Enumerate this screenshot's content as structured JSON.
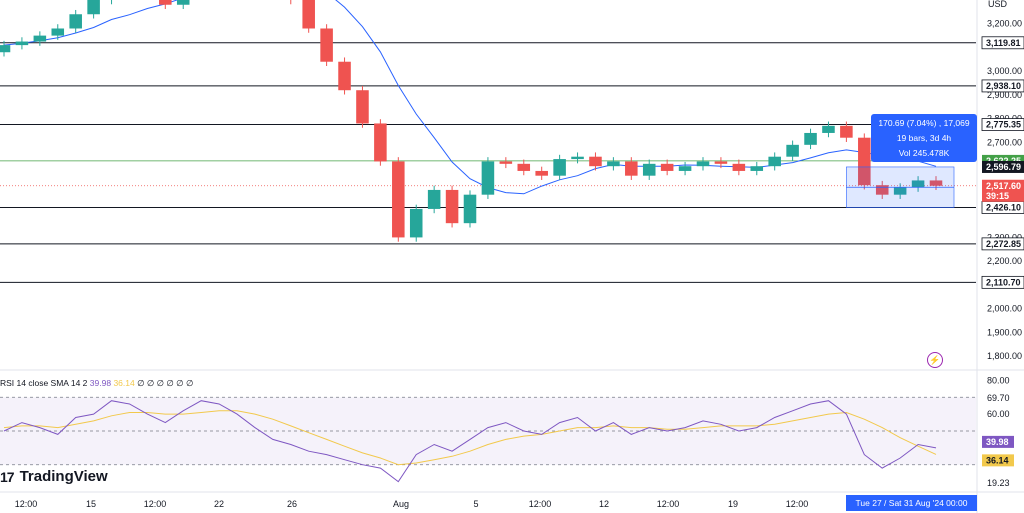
{
  "currency": "USD",
  "price_axis": {
    "ticks": [
      "3,200.00",
      "3,000.00",
      "2,900.00",
      "2,800.00",
      "2,700.00",
      "2,300.00",
      "2,200.00",
      "2,000.00",
      "1,900.00",
      "1,800.00"
    ],
    "tick_values": [
      3200,
      3000,
      2900,
      2800,
      2700,
      2300,
      2200,
      2000,
      1900,
      1800
    ]
  },
  "levels": [
    {
      "label": "3,119.81",
      "value": 3119.81
    },
    {
      "label": "2,938.10",
      "value": 2938.1
    },
    {
      "label": "2,775.35",
      "value": 2775.35
    },
    {
      "label": "2,426.10",
      "value": 2426.1
    },
    {
      "label": "2,272.85",
      "value": 2272.85
    },
    {
      "label": "2,110.70",
      "value": 2110.7
    }
  ],
  "tags": [
    {
      "label": "2,622.25",
      "value": 2622.25,
      "color": "#43a047"
    },
    {
      "label": "2,596.79",
      "value": 2596.79,
      "color": "#131722"
    },
    {
      "label": "2,517.60",
      "value": 2517.6,
      "color": "#ef5350"
    }
  ],
  "countdown": "39:15",
  "measure_tooltip": {
    "line1": "170.69 (7.04%) , 17,069",
    "line2": "19 bars, 3d 4h",
    "line3": "Vol 245.478K"
  },
  "rsi": {
    "legend_label": "RSI 14 close SMA 14 2",
    "rsi_value": "39.98",
    "sma_value": "36.14",
    "legend_tail": "∅ ∅ ∅ ∅ ∅ ∅",
    "axis_ticks": [
      "80.00",
      "69.70",
      "60.00",
      "19.23"
    ],
    "axis_values": [
      80,
      69.7,
      60,
      19.23
    ],
    "upper_band": 70,
    "lower_band": 30
  },
  "time_axis": [
    "12:00",
    "15",
    "12:00",
    "22",
    "26",
    "Aug",
    "5",
    "12:00",
    "12",
    "12:00",
    "19",
    "12:00"
  ],
  "date_range": "Tue 27 / Sat 31 Aug '24   00:00",
  "brand": "TradingView",
  "brand_mark": "17",
  "colors": {
    "up": "#26a69a",
    "down": "#ef5350",
    "ma": "#2962ff",
    "rsi": "#7e57c2",
    "rsi_sma": "#f2c94c",
    "level": "#131722"
  },
  "chart_data": {
    "type": "candlestick",
    "symbol_currency": "USD",
    "series": [
      {
        "name": "price",
        "close": [
          3110,
          3125,
          3150,
          3180,
          3240,
          3300,
          3420,
          3380,
          3320,
          3280,
          3350,
          3420,
          3440,
          3470,
          3430,
          3380,
          3300,
          3180,
          3040,
          2920,
          2780,
          2620,
          2300,
          2420,
          2500,
          2360,
          2480,
          2620,
          2610,
          2580,
          2560,
          2630,
          2640,
          2600,
          2620,
          2560,
          2610,
          2580,
          2600,
          2620,
          2610,
          2580,
          2600,
          2640,
          2690,
          2740,
          2770,
          2720,
          2520,
          2480,
          2510,
          2540,
          2517.6
        ]
      }
    ],
    "levels": [
      3119.81,
      2938.1,
      2775.35,
      2426.1,
      2272.85,
      2110.7
    ],
    "y_range": [
      1750,
      3300
    ],
    "rsi": {
      "values": [
        50,
        55,
        52,
        48,
        58,
        60,
        68,
        66,
        60,
        55,
        62,
        68,
        66,
        60,
        52,
        45,
        42,
        38,
        36,
        33,
        30,
        28,
        20,
        36,
        42,
        38,
        45,
        52,
        55,
        50,
        48,
        55,
        58,
        50,
        55,
        48,
        52,
        50,
        52,
        56,
        54,
        50,
        52,
        58,
        62,
        66,
        68,
        60,
        36,
        28,
        34,
        42,
        39.98
      ],
      "sma": [
        52,
        53,
        53,
        52,
        54,
        56,
        59,
        61,
        61,
        60,
        60,
        61,
        62,
        62,
        60,
        57,
        53,
        49,
        45,
        41,
        37,
        34,
        30,
        31,
        33,
        35,
        38,
        42,
        45,
        47,
        48,
        50,
        52,
        52,
        53,
        52,
        52,
        51,
        51,
        52,
        53,
        53,
        53,
        54,
        56,
        58,
        60,
        61,
        57,
        52,
        46,
        41,
        36.14
      ],
      "range": [
        15,
        85
      ]
    }
  }
}
